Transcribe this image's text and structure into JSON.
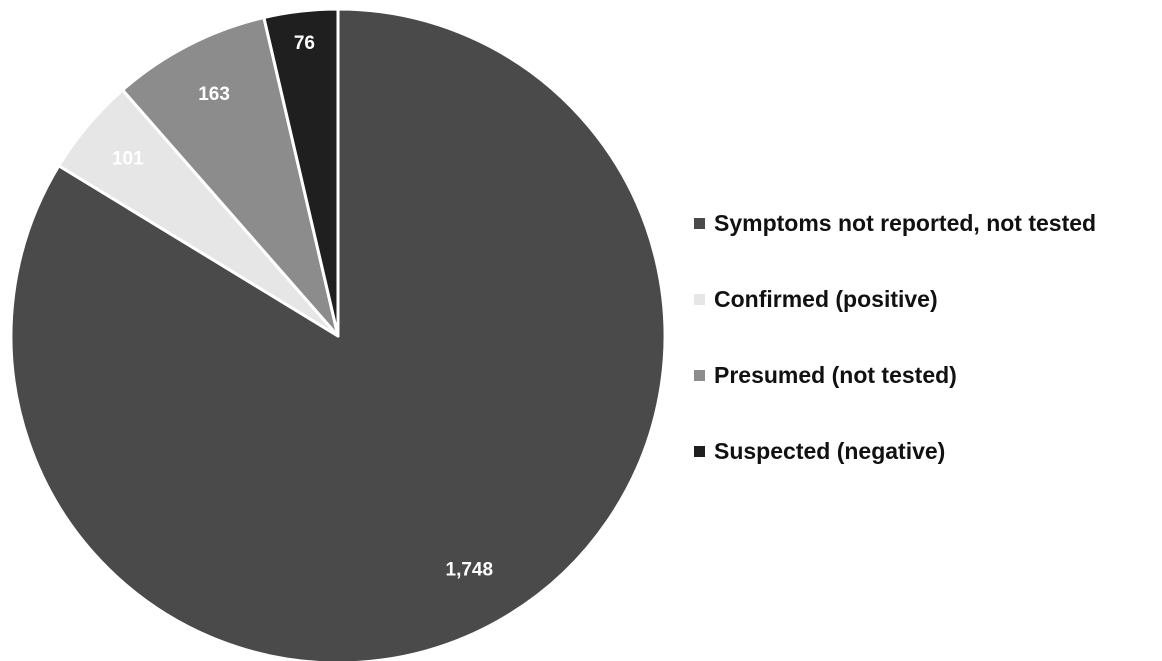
{
  "chart_data": {
    "type": "pie",
    "title": "",
    "categories": [
      "Symptoms not reported, not tested",
      "Confirmed (positive)",
      "Presumed (not tested)",
      "Suspected (negative)"
    ],
    "values": [
      1748,
      101,
      163,
      76
    ],
    "value_labels": [
      "1,748",
      "101",
      "163",
      "76"
    ],
    "colors": [
      "#4a4a4a",
      "#e6e6e6",
      "#8c8c8c",
      "#1f1f1f"
    ],
    "label_colors": [
      "#ffffff",
      "#ffffff",
      "#ffffff",
      "#ffffff"
    ],
    "start_angle_deg": 0,
    "direction": "clockwise",
    "legend_position": "right"
  }
}
